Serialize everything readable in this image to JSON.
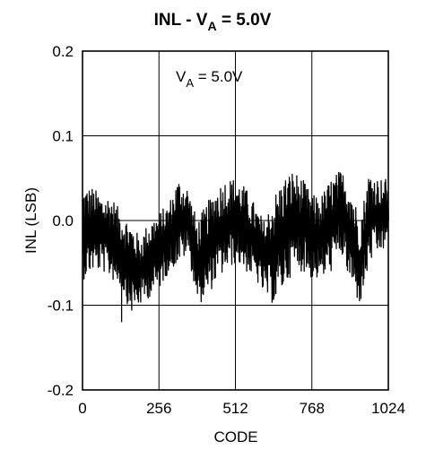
{
  "chart_data": {
    "type": "line",
    "title": "INL - V",
    "title_subscript": "A",
    "title_suffix": " = 5.0V",
    "annotation": {
      "text": "V",
      "subscript": "A",
      "suffix": " = 5.0V"
    },
    "xlabel": "CODE",
    "ylabel": "INL (LSB)",
    "xlim": [
      0,
      1024
    ],
    "ylim": [
      -0.2,
      0.2
    ],
    "xticks": [
      0,
      256,
      512,
      768,
      1024
    ],
    "xtick_labels": [
      "0",
      "256",
      "512",
      "768",
      "1024"
    ],
    "yticks": [
      0.2,
      0.1,
      0.0,
      -0.1,
      -0.2
    ],
    "ytick_labels": [
      "0.2",
      "0.1",
      "0.0",
      "-0.1",
      "-0.2"
    ],
    "grid": true,
    "legend": "none",
    "line_color": "#000000",
    "series": [
      {
        "x": [
          0,
          32,
          64,
          96,
          128,
          160,
          192,
          224,
          256,
          288,
          320,
          352,
          384,
          416,
          448,
          480,
          512,
          544,
          576,
          608,
          640,
          672,
          704,
          736,
          768,
          800,
          832,
          864,
          896,
          928,
          960,
          992,
          1024
        ],
        "upper": [
          0.04,
          0.04,
          0.03,
          0.03,
          0.01,
          0.0,
          -0.02,
          0.0,
          0.01,
          0.02,
          0.05,
          0.04,
          0.0,
          0.02,
          0.04,
          0.05,
          0.05,
          0.04,
          0.02,
          0.0,
          0.03,
          0.05,
          0.06,
          0.05,
          0.03,
          0.03,
          0.05,
          0.06,
          0.05,
          0.0,
          0.06,
          0.05,
          0.05
        ],
        "lower": [
          -0.07,
          -0.06,
          -0.06,
          -0.07,
          -0.08,
          -0.11,
          -0.1,
          -0.09,
          -0.08,
          -0.06,
          -0.05,
          -0.04,
          -0.1,
          -0.09,
          -0.07,
          -0.06,
          -0.05,
          -0.06,
          -0.07,
          -0.09,
          -0.1,
          -0.08,
          -0.06,
          -0.06,
          -0.07,
          -0.07,
          -0.06,
          -0.04,
          -0.08,
          -0.1,
          -0.05,
          -0.04,
          -0.03
        ],
        "min_point": [
          131,
          -0.12
        ]
      }
    ]
  }
}
